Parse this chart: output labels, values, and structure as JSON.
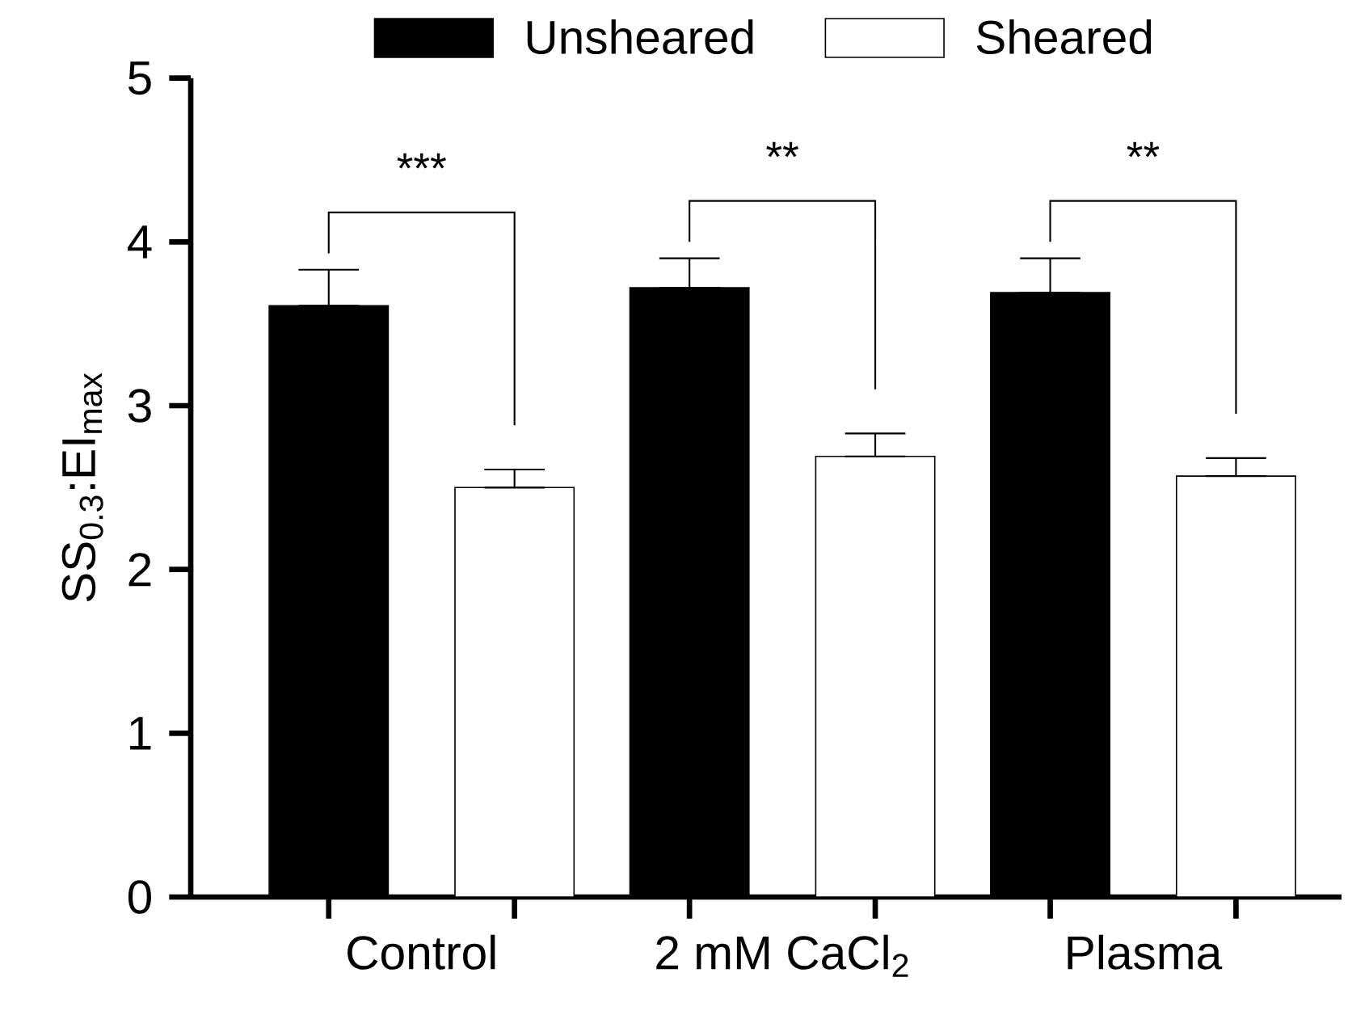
{
  "chart_data": {
    "type": "bar",
    "ylabel": "SS$_{0.3}$:EI$_{max}$",
    "categories": [
      "Control",
      "2 mM CaCl$_{2}$",
      "Plasma"
    ],
    "series": [
      {
        "name": "Unsheared",
        "color": "#000000",
        "values": [
          3.61,
          3.72,
          3.69
        ],
        "errors": [
          [
            3.61,
            3.83
          ],
          [
            3.72,
            3.9
          ],
          [
            3.69,
            3.9
          ]
        ]
      },
      {
        "name": "Sheared",
        "color": "#ffffff",
        "values": [
          2.5,
          2.69,
          2.57
        ],
        "errors": [
          [
            2.5,
            2.61
          ],
          [
            2.69,
            2.83
          ],
          [
            2.57,
            2.68
          ]
        ]
      }
    ],
    "annotations": [
      "***",
      "**",
      "**"
    ],
    "ylim": [
      0,
      5
    ],
    "yticks": [
      0,
      1,
      2,
      3,
      4,
      5
    ],
    "grid": false,
    "legend": "top"
  }
}
